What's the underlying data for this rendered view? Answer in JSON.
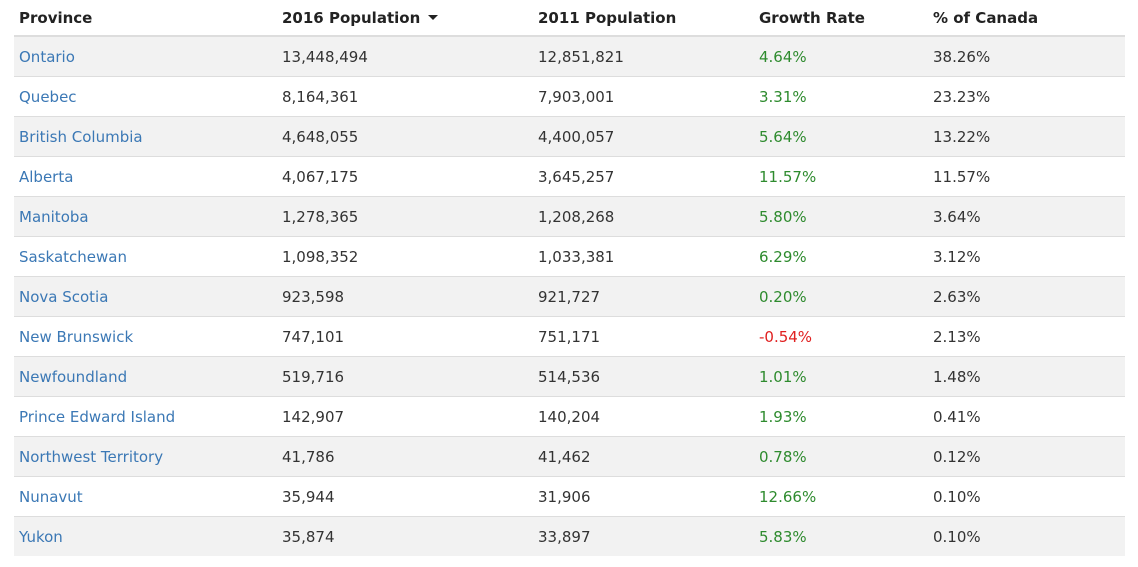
{
  "table": {
    "headers": {
      "province": "Province",
      "pop2016": "2016 Population",
      "pop2011": "2011 Population",
      "growth": "Growth Rate",
      "share": "% of Canada"
    },
    "sort": {
      "column": "pop2016",
      "direction": "descending"
    },
    "colors": {
      "link": "#3b78b5",
      "positive": "#2e8b2e",
      "negative": "#e02020"
    },
    "rows": [
      {
        "province": "Ontario",
        "pop2016": "13,448,494",
        "pop2011": "12,851,821",
        "growth": "4.64%",
        "share": "38.26%"
      },
      {
        "province": "Quebec",
        "pop2016": "8,164,361",
        "pop2011": "7,903,001",
        "growth": "3.31%",
        "share": "23.23%"
      },
      {
        "province": "British Columbia",
        "pop2016": "4,648,055",
        "pop2011": "4,400,057",
        "growth": "5.64%",
        "share": "13.22%"
      },
      {
        "province": "Alberta",
        "pop2016": "4,067,175",
        "pop2011": "3,645,257",
        "growth": "11.57%",
        "share": "11.57%"
      },
      {
        "province": "Manitoba",
        "pop2016": "1,278,365",
        "pop2011": "1,208,268",
        "growth": "5.80%",
        "share": "3.64%"
      },
      {
        "province": "Saskatchewan",
        "pop2016": "1,098,352",
        "pop2011": "1,033,381",
        "growth": "6.29%",
        "share": "3.12%"
      },
      {
        "province": "Nova Scotia",
        "pop2016": "923,598",
        "pop2011": "921,727",
        "growth": "0.20%",
        "share": "2.63%"
      },
      {
        "province": "New Brunswick",
        "pop2016": "747,101",
        "pop2011": "751,171",
        "growth": "-0.54%",
        "share": "2.13%"
      },
      {
        "province": "Newfoundland",
        "pop2016": "519,716",
        "pop2011": "514,536",
        "growth": "1.01%",
        "share": "1.48%"
      },
      {
        "province": "Prince Edward Island",
        "pop2016": "142,907",
        "pop2011": "140,204",
        "growth": "1.93%",
        "share": "0.41%"
      },
      {
        "province": "Northwest Territory",
        "pop2016": "41,786",
        "pop2011": "41,462",
        "growth": "0.78%",
        "share": "0.12%"
      },
      {
        "province": "Nunavut",
        "pop2016": "35,944",
        "pop2011": "31,906",
        "growth": "12.66%",
        "share": "0.10%"
      },
      {
        "province": "Yukon",
        "pop2016": "35,874",
        "pop2011": "33,897",
        "growth": "5.83%",
        "share": "0.10%"
      }
    ]
  }
}
